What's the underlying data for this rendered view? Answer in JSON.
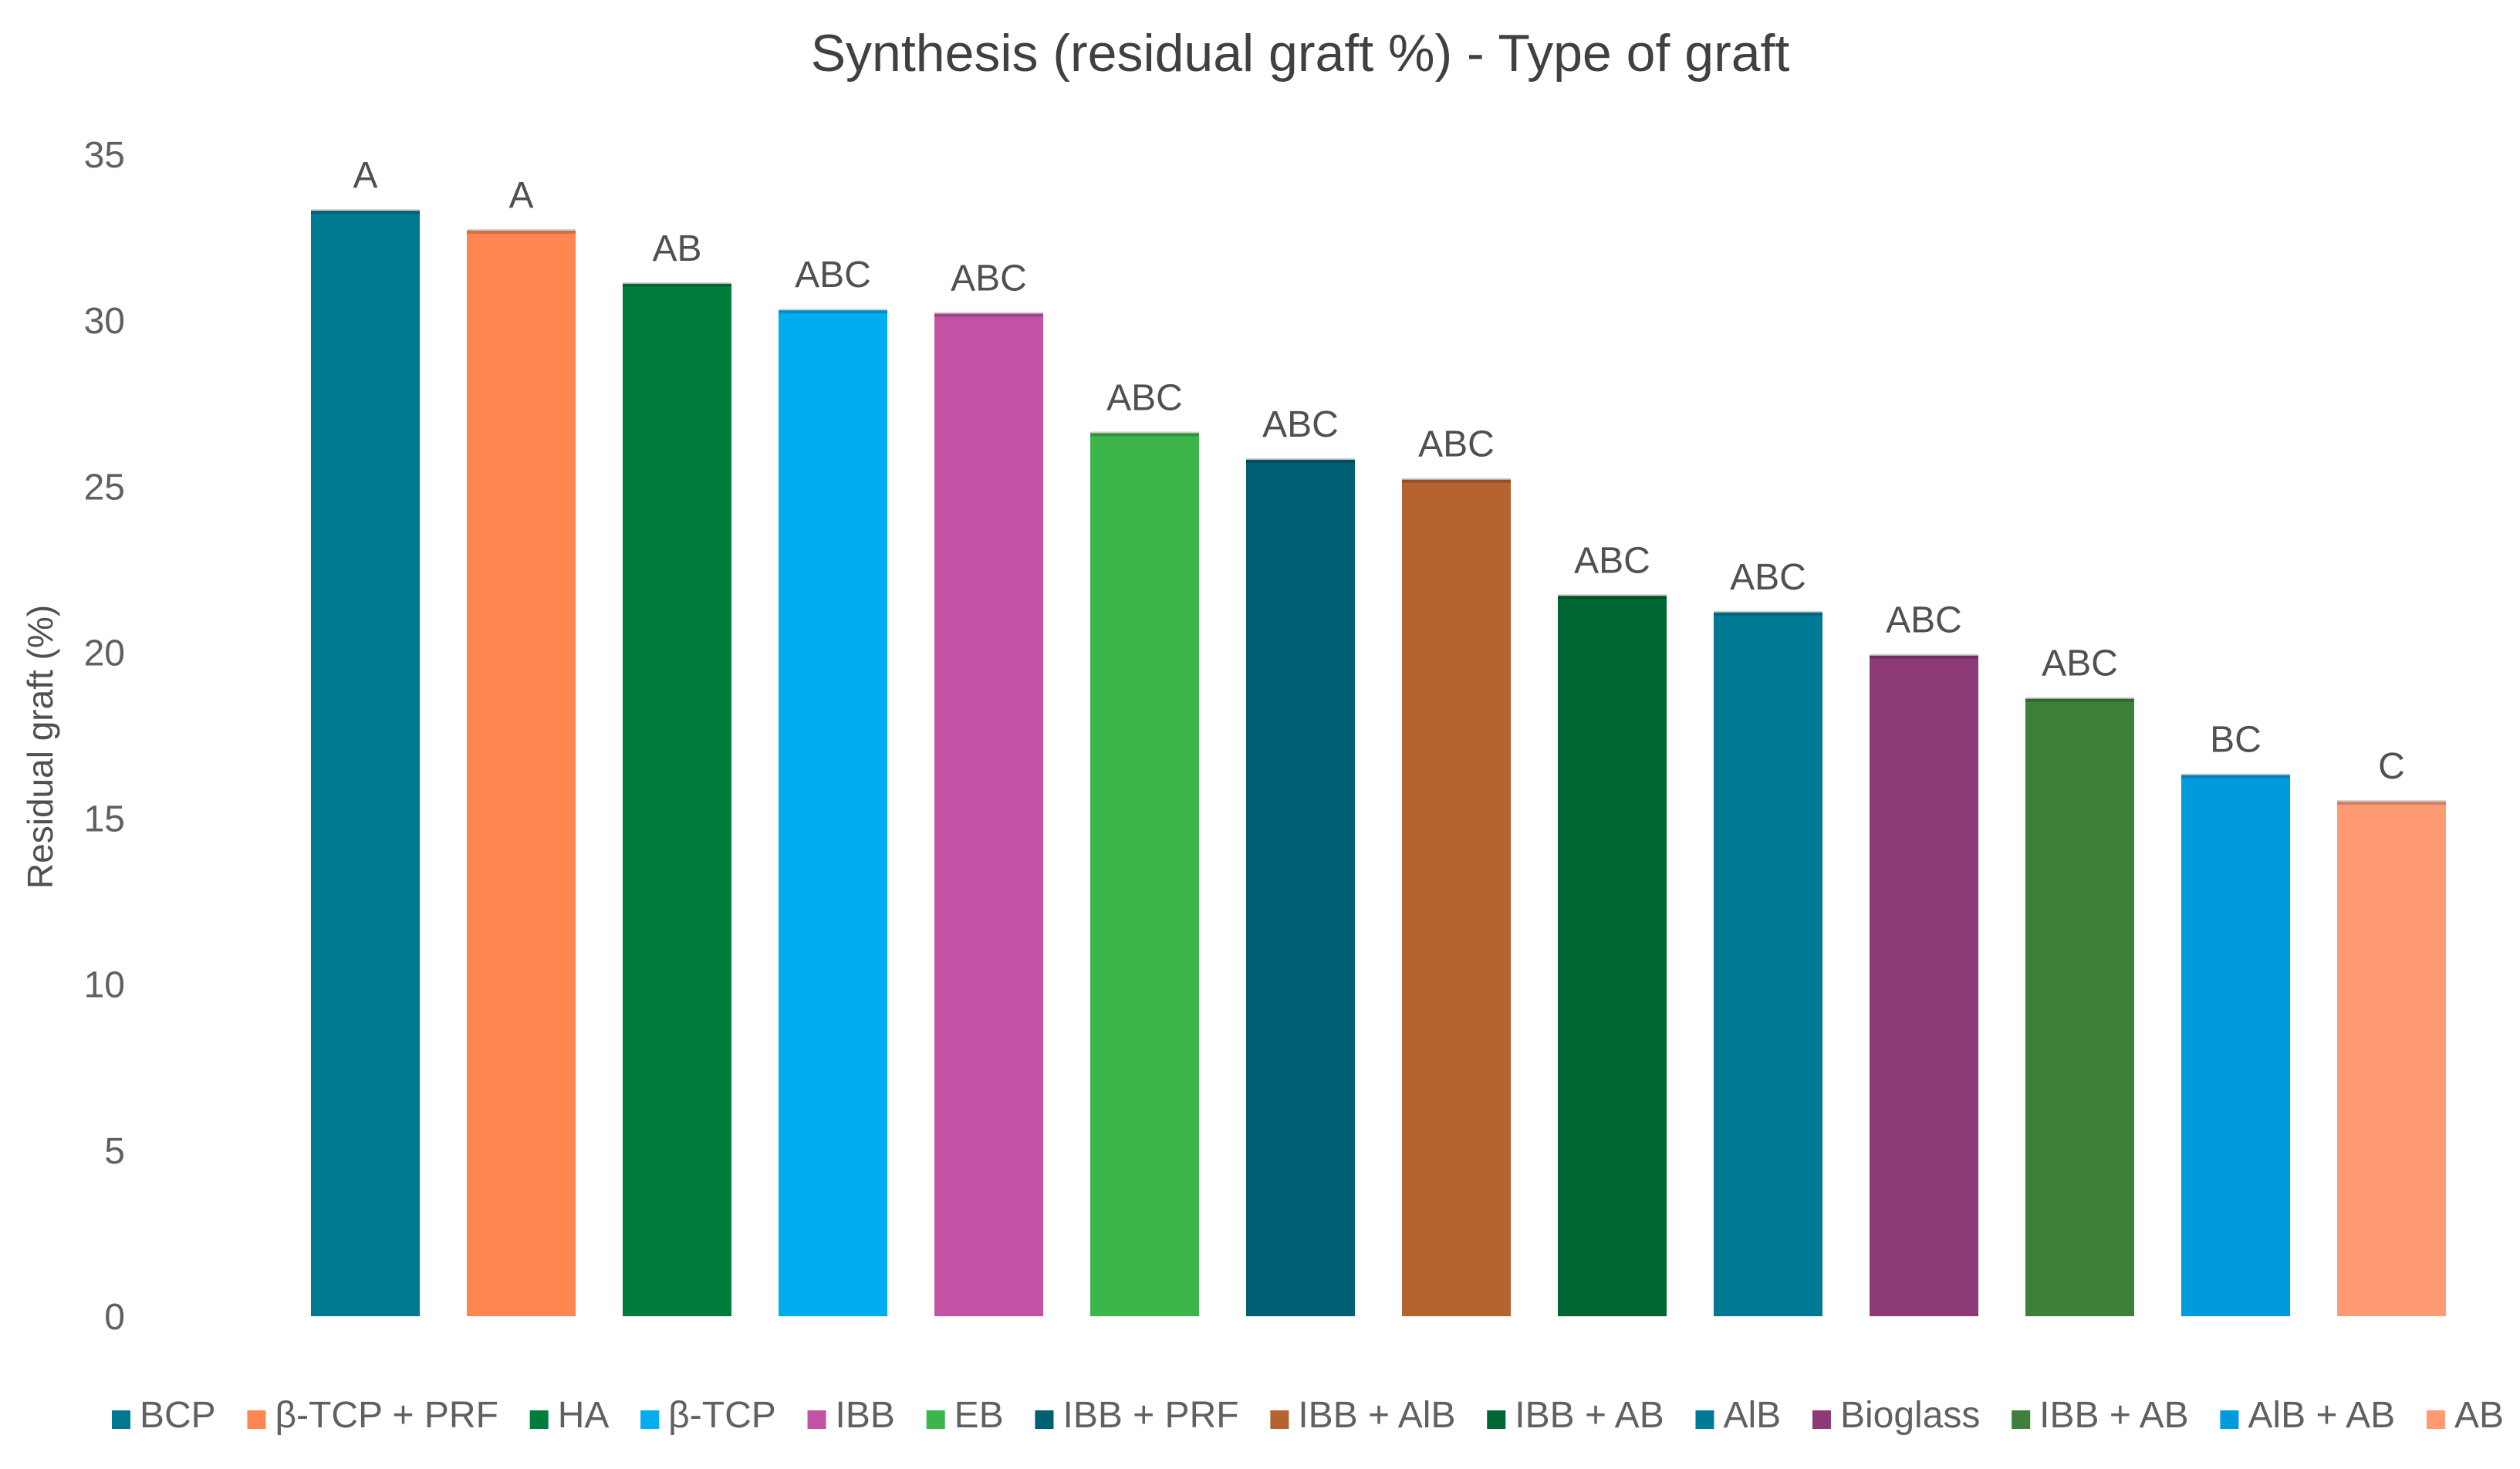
{
  "chart_data": {
    "type": "bar",
    "title": "Synthesis (residual graft %) - Type of graft",
    "xlabel": "",
    "ylabel": "Residual graft (%)",
    "ylim": [
      0,
      35
    ],
    "yticks": [
      0,
      5,
      10,
      15,
      20,
      25,
      30,
      35
    ],
    "grid": false,
    "legend": "bottom",
    "categories": [
      "BCP",
      "β-TCP + PRF",
      "HA",
      "β-TCP",
      "IBB",
      "EB",
      "IBB + PRF",
      "IBB + AlB",
      "IBB + AB",
      "AlB",
      "Bioglass",
      "IBB + AB",
      "AlB + AB",
      "AB"
    ],
    "values": [
      33.3,
      32.7,
      31.1,
      30.3,
      30.2,
      26.6,
      25.8,
      25.2,
      21.7,
      21.2,
      19.9,
      18.6,
      16.3,
      15.5
    ],
    "data_labels": [
      "A",
      "A",
      "AB",
      "ABC",
      "ABC",
      "ABC",
      "ABC",
      "ABC",
      "ABC",
      "ABC",
      "ABC",
      "ABC",
      "BC",
      "C"
    ],
    "colors": [
      "#00788F",
      "#FF8650",
      "#007D3C",
      "#00AEEF",
      "#C252A3",
      "#3CB54A",
      "#005F72",
      "#B5632F",
      "#006634",
      "#007A94",
      "#8D3B76",
      "#3E7F3A",
      "#009BDD",
      "#FF9B73"
    ]
  }
}
